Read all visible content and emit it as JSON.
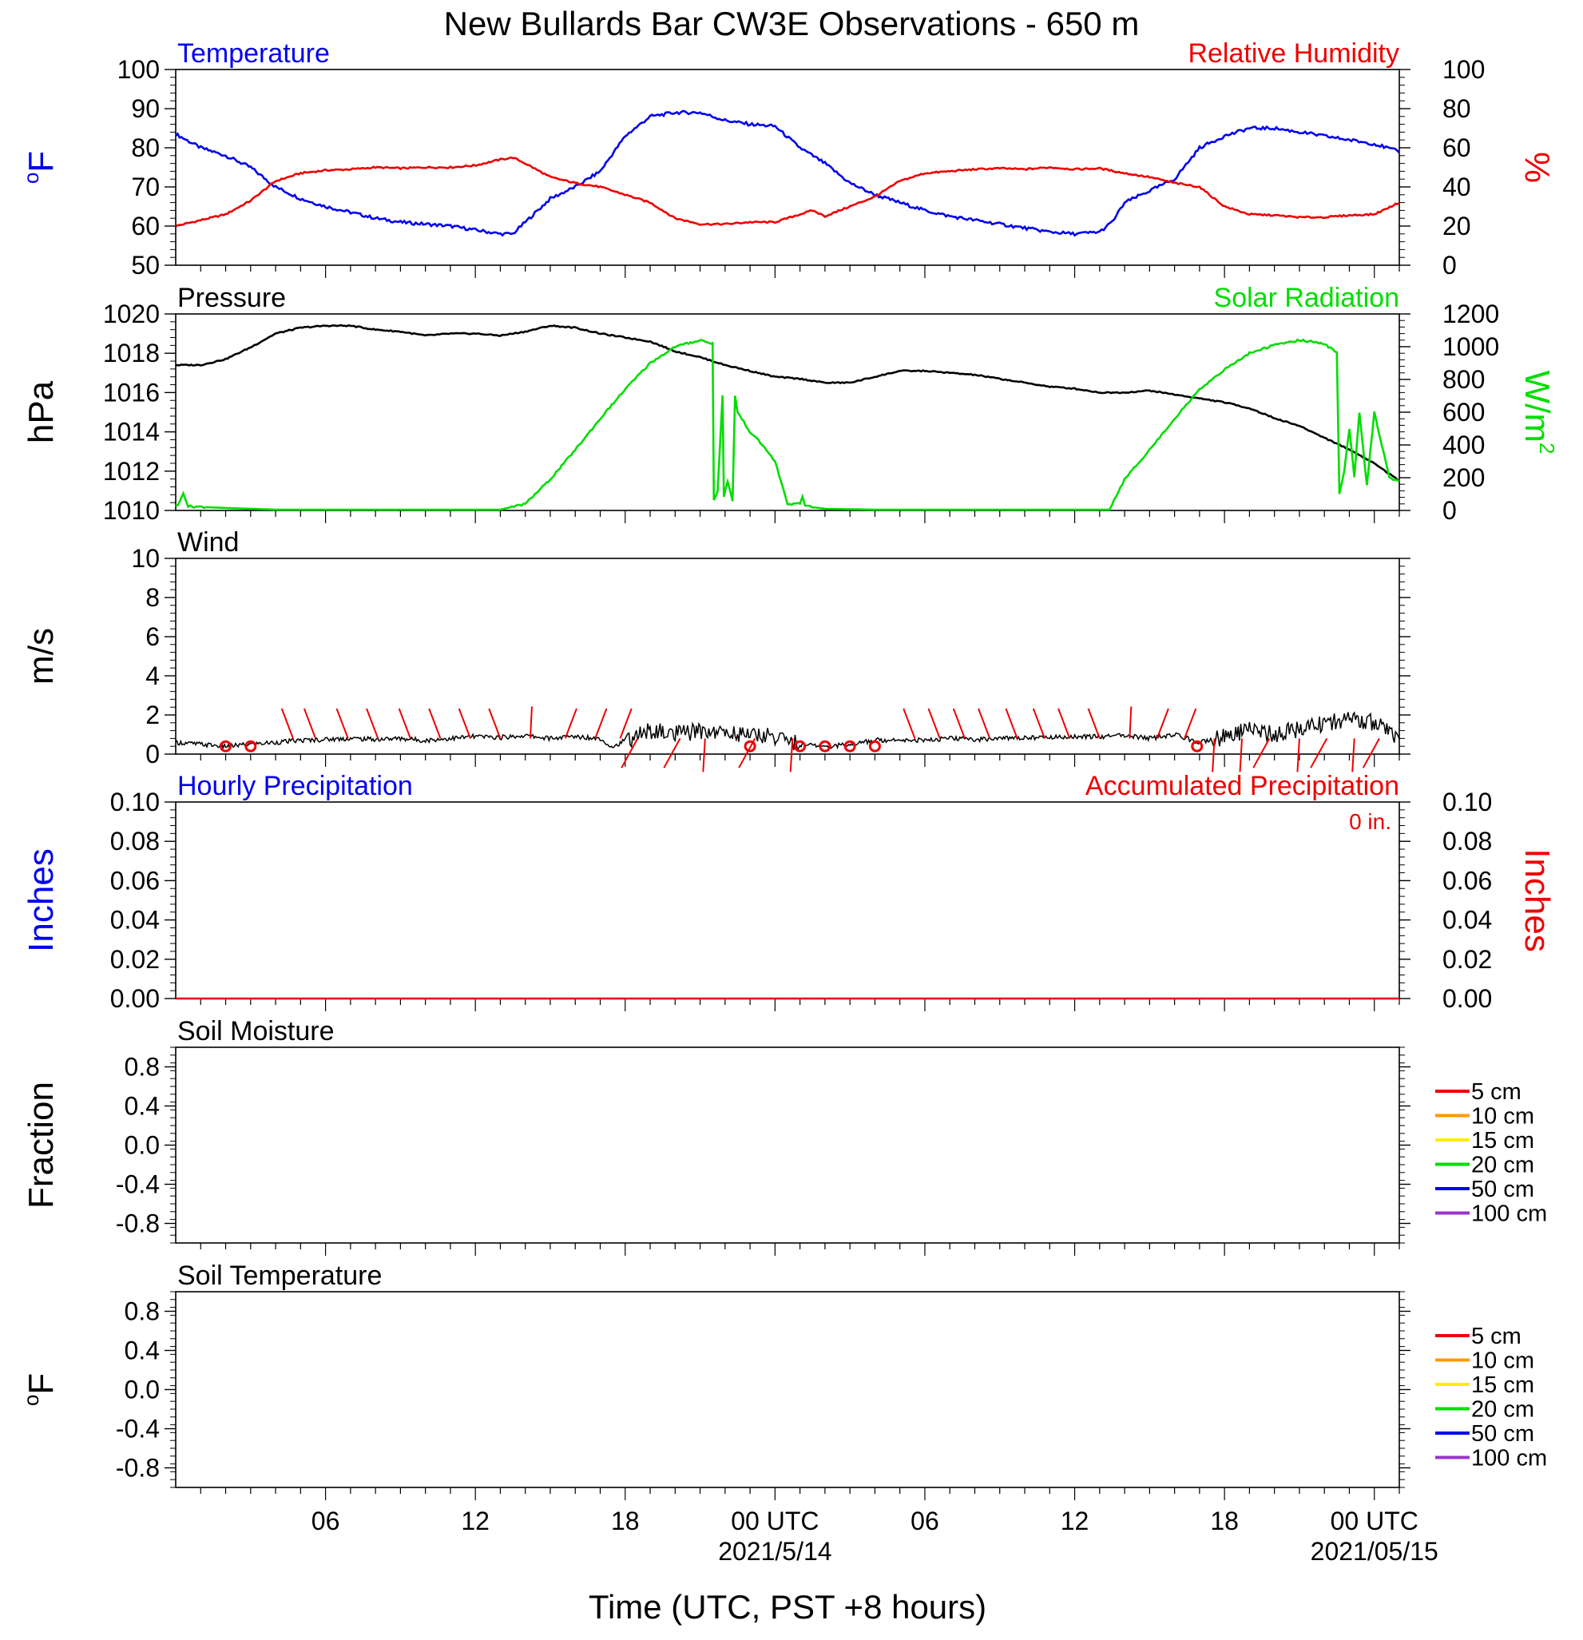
{
  "title": "New Bullards Bar CW3E Observations - 650 m",
  "colors": {
    "blue": "#0000ee",
    "red": "#ee0000",
    "green": "#00dd00",
    "black": "#000000",
    "orange": "#ff9900",
    "yellow": "#ffee00",
    "purple": "#9933cc"
  },
  "xaxis": {
    "title": "Time (UTC, PST +8 hours)",
    "range_hours": [
      -24,
      25
    ],
    "ticks": [
      {
        "h": -18,
        "label": "06"
      },
      {
        "h": -12,
        "label": "12"
      },
      {
        "h": -6,
        "label": "18"
      },
      {
        "h": 0,
        "label": "00 UTC"
      },
      {
        "h": 6,
        "label": "06"
      },
      {
        "h": 12,
        "label": "12"
      },
      {
        "h": 18,
        "label": "18"
      },
      {
        "h": 24,
        "label": "00 UTC"
      }
    ],
    "date_labels": [
      {
        "h": 0,
        "label": "2021/5/14"
      },
      {
        "h": 24,
        "label": "2021/05/15"
      }
    ]
  },
  "chart_data": [
    {
      "type": "line",
      "left_title": "Temperature",
      "right_title": "Relative Humidity",
      "ylabel": "°F",
      "ylabel_right": "%",
      "ylim": [
        50,
        100
      ],
      "ylim_right": [
        0,
        100
      ],
      "yticks": [
        "50",
        "60",
        "70",
        "80",
        "90",
        "100"
      ],
      "yticks_right": [
        "0",
        "20",
        "40",
        "60",
        "80",
        "100"
      ],
      "series": [
        {
          "axis": "left",
          "color": "#0000ee",
          "x": [
            -24,
            -23,
            -22,
            -21,
            -20,
            -19,
            -18,
            -17,
            -16,
            -15,
            -14,
            -13,
            -12,
            -11,
            -10.5,
            -10,
            -9,
            -8,
            -7,
            -6,
            -5,
            -4,
            -3,
            -2,
            -1,
            0,
            1,
            2,
            3,
            4,
            5,
            6,
            7,
            8,
            9,
            10,
            11,
            12,
            13,
            13.5,
            14,
            15,
            16,
            17,
            18,
            19,
            20,
            21,
            22,
            23,
            24,
            25
          ],
          "y": [
            83.5,
            80,
            78,
            75,
            70,
            67,
            65,
            63.5,
            62,
            61,
            60.5,
            60,
            59,
            58,
            58,
            61,
            67,
            70,
            74,
            83,
            88,
            89,
            89,
            87,
            86,
            85.5,
            80,
            76,
            71,
            68,
            66,
            64,
            62.5,
            61.5,
            60.5,
            59.5,
            58.5,
            58,
            58.5,
            61,
            66,
            69,
            72,
            80,
            83,
            85,
            85,
            84,
            83,
            82,
            81,
            79
          ]
        },
        {
          "axis": "right",
          "color": "#ee0000",
          "x": [
            -24,
            -23,
            -22,
            -21,
            -20,
            -19,
            -18,
            -17,
            -16,
            -15,
            -14,
            -13,
            -12,
            -11,
            -10.5,
            -10,
            -9,
            -8,
            -7,
            -6,
            -5,
            -4,
            -3,
            -2,
            -1,
            0,
            1,
            1.5,
            2,
            3,
            4,
            5,
            6,
            7,
            8,
            9,
            10,
            11,
            12,
            13,
            14,
            15,
            16,
            17,
            18,
            19,
            20,
            21,
            22,
            23,
            24,
            25
          ],
          "y": [
            20,
            23,
            26,
            33,
            43,
            47,
            48.5,
            49,
            50,
            49.5,
            50,
            50,
            51,
            54,
            55,
            52,
            45,
            42,
            40,
            36,
            32,
            24,
            21,
            21,
            22,
            22,
            26,
            28,
            25,
            30,
            35,
            43,
            47,
            48,
            49,
            49.5,
            49,
            50,
            49,
            49.5,
            47,
            45,
            42,
            40,
            30,
            26,
            25.5,
            24.5,
            24.5,
            25.5,
            26,
            32
          ]
        }
      ]
    },
    {
      "type": "line",
      "left_title": "Pressure",
      "right_title": "Solar Radiation",
      "ylabel": "hPa",
      "ylabel_right": "W/m2",
      "ylim": [
        1010,
        1020
      ],
      "ylim_right": [
        0,
        1200
      ],
      "yticks": [
        "1010",
        "1012",
        "1014",
        "1016",
        "1018",
        "1020"
      ],
      "yticks_right": [
        "0",
        "200",
        "400",
        "600",
        "800",
        "1000",
        "1200"
      ],
      "series": [
        {
          "axis": "left",
          "color": "#000000",
          "x": [
            -24,
            -23,
            -22,
            -21,
            -20,
            -19,
            -18,
            -17,
            -16,
            -15,
            -14,
            -13,
            -12,
            -11,
            -10,
            -9,
            -8,
            -7,
            -6,
            -5,
            -4,
            -3,
            -2,
            -1,
            0,
            1,
            2,
            3,
            4,
            5,
            6,
            7,
            8,
            9,
            10,
            11,
            12,
            13,
            14,
            15,
            16,
            17,
            18,
            19,
            20,
            21,
            22,
            23,
            24,
            25
          ],
          "y": [
            1017.4,
            1017.4,
            1017.7,
            1018.3,
            1019,
            1019.3,
            1019.4,
            1019.4,
            1019.2,
            1019.1,
            1018.9,
            1019,
            1019,
            1018.9,
            1019.1,
            1019.4,
            1019.3,
            1019,
            1018.8,
            1018.6,
            1018.1,
            1017.8,
            1017.4,
            1017.1,
            1016.8,
            1016.7,
            1016.5,
            1016.5,
            1016.8,
            1017.1,
            1017.1,
            1017,
            1016.9,
            1016.7,
            1016.5,
            1016.3,
            1016.2,
            1016,
            1016,
            1016.1,
            1015.9,
            1015.7,
            1015.5,
            1015.2,
            1014.7,
            1014.3,
            1013.7,
            1013.1,
            1012.4,
            1011.5
          ]
        },
        {
          "axis": "right",
          "color": "#00dd00",
          "x": [
            -24,
            -23.9,
            -23.7,
            -23.5,
            -22,
            -20,
            -15,
            -11.5,
            -11,
            -10,
            -9,
            -8,
            -7,
            -6,
            -5,
            -4,
            -3,
            -2.5,
            -2.45,
            -2.3,
            -2.1,
            -2.05,
            -1.9,
            -1.7,
            -1.6,
            -1.5,
            -1,
            -0.5,
            0,
            0.5,
            1,
            1.1,
            1.2,
            1.3,
            1.5,
            2,
            4,
            8,
            12,
            13.4,
            13.5,
            14,
            15,
            16,
            17,
            18,
            19,
            20,
            21,
            22,
            22.5,
            22.6,
            22.8,
            23,
            23.2,
            23.4,
            23.7,
            24,
            24.3,
            24.6,
            25
          ],
          "y": [
            30,
            30,
            110,
            25,
            15,
            5,
            5,
            5,
            5,
            40,
            190,
            370,
            560,
            740,
            900,
            1000,
            1040,
            1020,
            60,
            120,
            700,
            80,
            180,
            60,
            700,
            600,
            480,
            400,
            300,
            40,
            40,
            80,
            30,
            30,
            20,
            10,
            5,
            5,
            5,
            5,
            40,
            190,
            370,
            560,
            740,
            860,
            960,
            1010,
            1040,
            1020,
            960,
            100,
            250,
            500,
            200,
            600,
            150,
            600,
            400,
            200,
            180
          ]
        }
      ]
    },
    {
      "type": "line",
      "left_title": "Wind",
      "ylabel": "m/s",
      "ylim": [
        0,
        10
      ],
      "yticks": [
        "0",
        "2",
        "4",
        "6",
        "8",
        "10"
      ],
      "series": [
        {
          "color": "#000000",
          "x": [
            -24,
            -23,
            -22,
            -21,
            -20,
            -19,
            -18,
            -17,
            -16,
            -15,
            -14,
            -13,
            -12,
            -11,
            -10,
            -9,
            -8,
            -7,
            -6.5,
            -6,
            -5,
            -4,
            -3,
            -2,
            -1,
            0,
            1,
            2,
            3,
            4,
            5,
            6,
            7,
            8,
            9,
            10,
            11,
            12,
            13,
            14,
            15,
            16,
            17,
            18,
            19,
            20,
            21,
            22,
            23,
            24,
            25
          ],
          "y": [
            0.6,
            0.5,
            0.4,
            0.5,
            0.6,
            0.7,
            0.75,
            0.8,
            0.75,
            0.8,
            0.7,
            0.8,
            0.9,
            0.85,
            0.95,
            0.8,
            0.9,
            0.8,
            0.35,
            0.7,
            1.2,
            1.0,
            1.2,
            1.1,
            1.0,
            0.9,
            0.5,
            0.4,
            0.5,
            0.7,
            0.75,
            0.7,
            0.8,
            0.75,
            0.8,
            0.85,
            0.85,
            0.9,
            0.9,
            0.95,
            0.8,
            1.0,
            0.6,
            0.9,
            1.2,
            1.0,
            1.3,
            1.6,
            1.8,
            1.6,
            0.8
          ]
        }
      ],
      "calm_hours": [
        -22,
        -21,
        -1,
        1,
        2,
        3,
        4,
        16.9
      ],
      "barbs": [
        {
          "h": -19.3,
          "dir": "nw"
        },
        {
          "h": -18.4,
          "dir": "nw"
        },
        {
          "h": -17.1,
          "dir": "nw"
        },
        {
          "h": -15.9,
          "dir": "nw"
        },
        {
          "h": -14.6,
          "dir": "nw"
        },
        {
          "h": -13.4,
          "dir": "nw"
        },
        {
          "h": -12.2,
          "dir": "nw"
        },
        {
          "h": -11,
          "dir": "nw"
        },
        {
          "h": -9.8,
          "dir": "n"
        },
        {
          "h": -8.4,
          "dir": "ne"
        },
        {
          "h": -7.2,
          "dir": "ne"
        },
        {
          "h": -6.2,
          "dir": "ne"
        },
        {
          "h": -5.5,
          "dir": "se"
        },
        {
          "h": -3.8,
          "dir": "se"
        },
        {
          "h": -2.8,
          "dir": "s"
        },
        {
          "h": -0.8,
          "dir": "se"
        },
        {
          "h": 0.7,
          "dir": "s"
        },
        {
          "h": 5.6,
          "dir": "nw"
        },
        {
          "h": 6.6,
          "dir": "nw"
        },
        {
          "h": 7.6,
          "dir": "nw"
        },
        {
          "h": 8.6,
          "dir": "nw"
        },
        {
          "h": 9.7,
          "dir": "nw"
        },
        {
          "h": 10.8,
          "dir": "nw"
        },
        {
          "h": 11.8,
          "dir": "nw"
        },
        {
          "h": 13,
          "dir": "nw"
        },
        {
          "h": 14.2,
          "dir": "n"
        },
        {
          "h": 15.3,
          "dir": "ne"
        },
        {
          "h": 16.4,
          "dir": "ne"
        },
        {
          "h": 17.6,
          "dir": "s"
        },
        {
          "h": 18.7,
          "dir": "s"
        },
        {
          "h": 19.8,
          "dir": "se"
        },
        {
          "h": 21,
          "dir": "s"
        },
        {
          "h": 22.1,
          "dir": "se"
        },
        {
          "h": 23.2,
          "dir": "s"
        },
        {
          "h": 24.2,
          "dir": "se"
        }
      ]
    },
    {
      "type": "line",
      "left_title": "Hourly Precipitation",
      "right_title": "Accumulated Precipitation",
      "annotation": "0 in.",
      "ylabel": "Inches",
      "ylabel_right": "Inches",
      "ylim": [
        0,
        0.1
      ],
      "ylim_right": [
        0,
        0.1
      ],
      "yticks": [
        "0.00",
        "0.02",
        "0.04",
        "0.06",
        "0.08",
        "0.10"
      ],
      "yticks_right": [
        "0.00",
        "0.02",
        "0.04",
        "0.06",
        "0.08",
        "0.10"
      ],
      "series": [
        {
          "color": "#ee0000",
          "x": [
            -24,
            25
          ],
          "y": [
            0,
            0
          ]
        }
      ]
    },
    {
      "type": "line",
      "left_title": "Soil Moisture",
      "ylabel": "Fraction",
      "ylim": [
        -1,
        1
      ],
      "yticks": [
        "-0.8",
        "-0.4",
        "0.0",
        "0.4",
        "0.8"
      ],
      "legend": [
        {
          "label": "5 cm",
          "color": "#ee0000"
        },
        {
          "label": "10 cm",
          "color": "#ff9900"
        },
        {
          "label": "15 cm",
          "color": "#ffee00"
        },
        {
          "label": "20 cm",
          "color": "#00dd00"
        },
        {
          "label": "50 cm",
          "color": "#0000ee"
        },
        {
          "label": "100 cm",
          "color": "#9933cc"
        }
      ]
    },
    {
      "type": "line",
      "left_title": "Soil Temperature",
      "ylabel": "°F",
      "ylim": [
        -1,
        1
      ],
      "yticks": [
        "-0.8",
        "-0.4",
        "0.0",
        "0.4",
        "0.8"
      ],
      "legend": [
        {
          "label": "5 cm",
          "color": "#ee0000"
        },
        {
          "label": "10 cm",
          "color": "#ff9900"
        },
        {
          "label": "15 cm",
          "color": "#ffee00"
        },
        {
          "label": "20 cm",
          "color": "#00dd00"
        },
        {
          "label": "50 cm",
          "color": "#0000ee"
        },
        {
          "label": "100 cm",
          "color": "#9933cc"
        }
      ]
    }
  ]
}
